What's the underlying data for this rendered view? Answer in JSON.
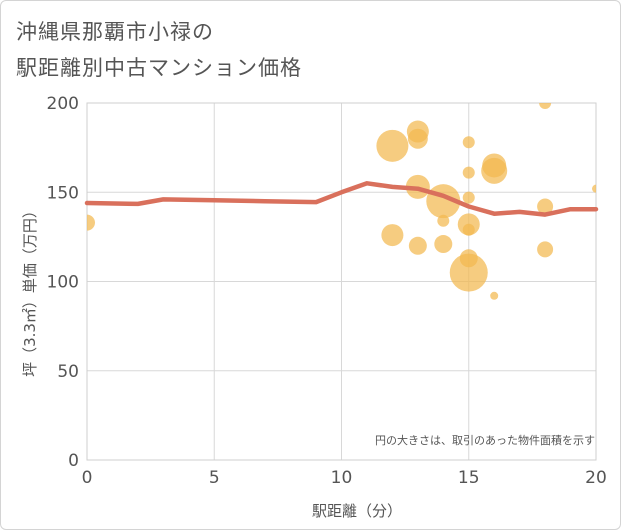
{
  "title_line1": "沖縄県那覇市小禄の",
  "title_line2": "駅距離別中古マンション価格",
  "chart_data": {
    "type": "scatter",
    "title": "沖縄県那覇市小禄の 駅距離別中古マンション価格",
    "xlabel": "駅距離（分）",
    "ylabel": "坪（3.3㎡）単価（万円）",
    "xlim": [
      0,
      20
    ],
    "ylim": [
      0,
      200
    ],
    "xticks": [
      0,
      5,
      10,
      15,
      20
    ],
    "yticks": [
      0,
      50,
      100,
      150,
      200
    ],
    "grid": true,
    "annotation": "円の大きさは、取引のあった物件面積を示す",
    "series": [
      {
        "name": "trend",
        "kind": "line",
        "color": "#d9705c",
        "x": [
          0,
          2,
          3,
          5,
          7,
          9,
          10,
          11,
          12,
          13,
          14,
          15,
          16,
          17,
          18,
          19,
          20
        ],
        "y": [
          144,
          143.5,
          146,
          145.5,
          145,
          144.5,
          150,
          155,
          153,
          152,
          148,
          142,
          138,
          139,
          137.5,
          140.5,
          140.5
        ]
      },
      {
        "name": "transactions",
        "kind": "bubble",
        "color": "#f2b84f",
        "points": [
          {
            "x": 0,
            "y": 133,
            "size": 8
          },
          {
            "x": 12,
            "y": 176,
            "size": 16
          },
          {
            "x": 12,
            "y": 126,
            "size": 11
          },
          {
            "x": 13,
            "y": 184,
            "size": 11
          },
          {
            "x": 13,
            "y": 180,
            "size": 10
          },
          {
            "x": 13,
            "y": 153,
            "size": 12
          },
          {
            "x": 13,
            "y": 120,
            "size": 9
          },
          {
            "x": 14,
            "y": 145,
            "size": 17
          },
          {
            "x": 14,
            "y": 134,
            "size": 6
          },
          {
            "x": 14,
            "y": 121,
            "size": 9
          },
          {
            "x": 15,
            "y": 178,
            "size": 6
          },
          {
            "x": 15,
            "y": 161,
            "size": 6
          },
          {
            "x": 15,
            "y": 147,
            "size": 6
          },
          {
            "x": 15,
            "y": 132,
            "size": 11
          },
          {
            "x": 15,
            "y": 129,
            "size": 6
          },
          {
            "x": 15,
            "y": 113,
            "size": 9
          },
          {
            "x": 15,
            "y": 105,
            "size": 19
          },
          {
            "x": 16,
            "y": 165,
            "size": 12
          },
          {
            "x": 16,
            "y": 162,
            "size": 13
          },
          {
            "x": 16,
            "y": 92,
            "size": 4
          },
          {
            "x": 18,
            "y": 200,
            "size": 6
          },
          {
            "x": 18,
            "y": 142,
            "size": 8
          },
          {
            "x": 18,
            "y": 118,
            "size": 8
          },
          {
            "x": 20,
            "y": 152,
            "size": 4
          }
        ]
      }
    ]
  }
}
